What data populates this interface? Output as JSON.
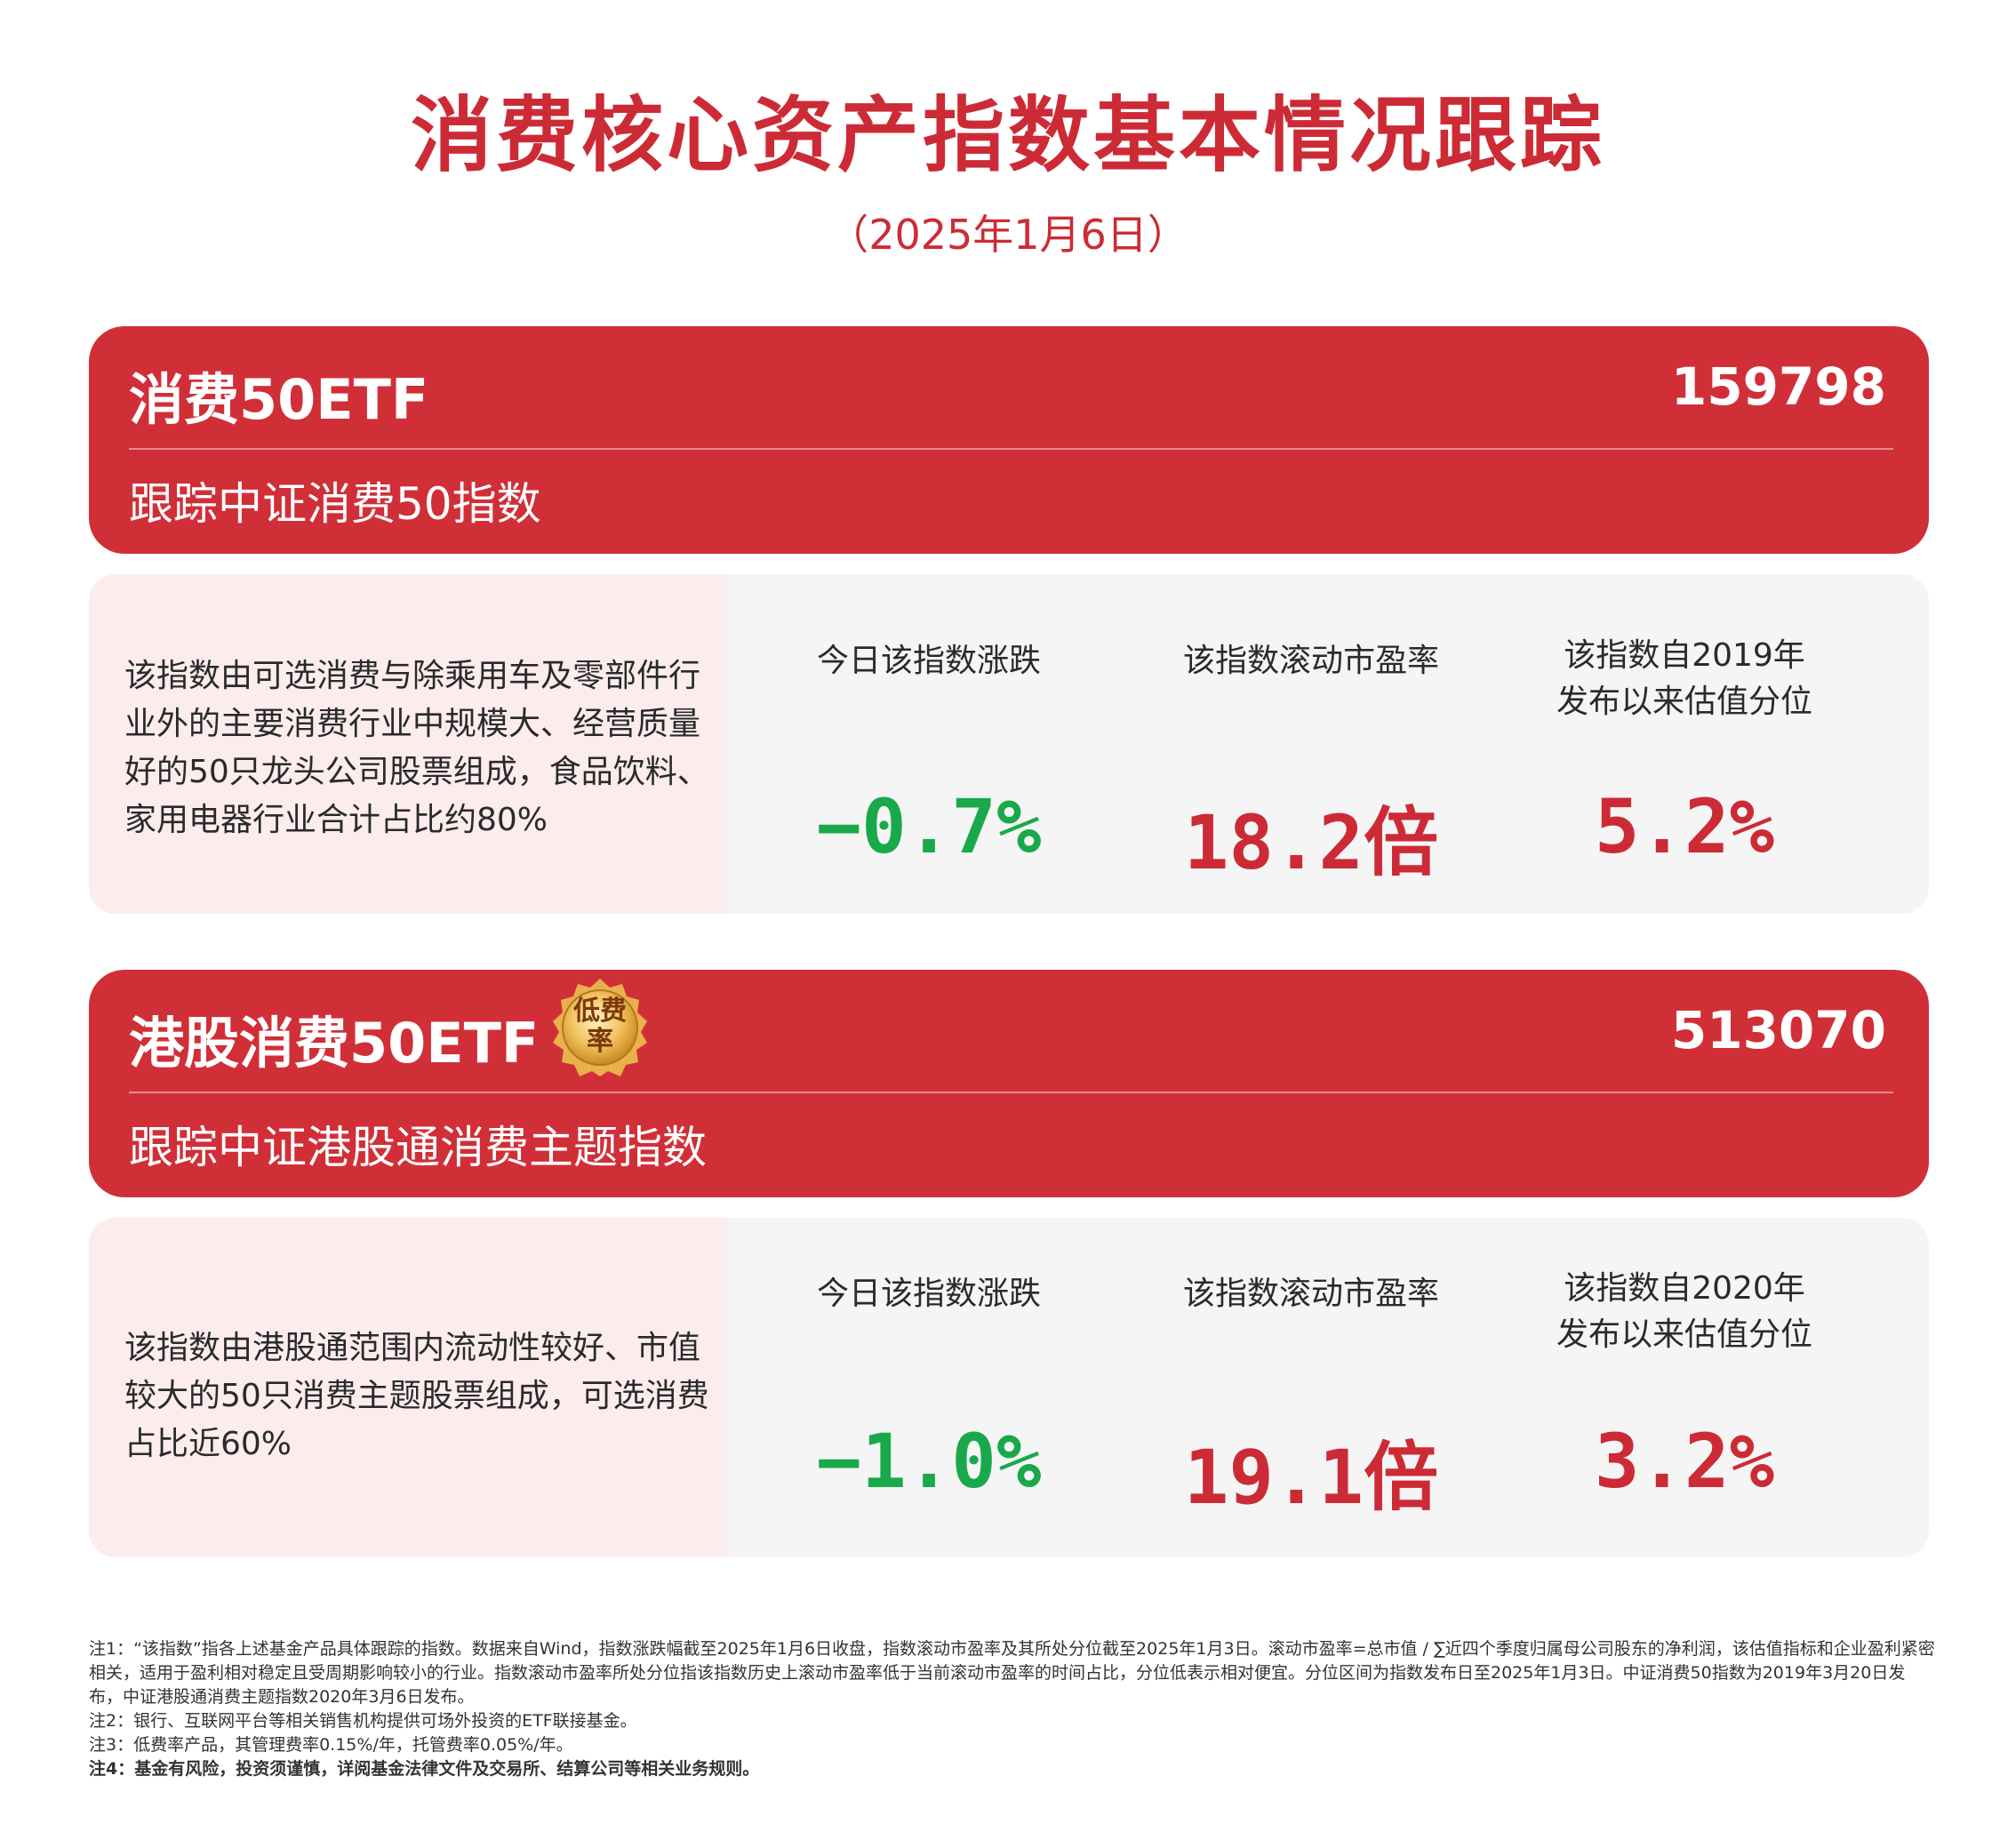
{
  "title": "消费核心资产指数基本情况跟踪",
  "date": "（2025年1月6日）",
  "funds": [
    {
      "name": "消费50ETF",
      "code": "159798",
      "track": "跟踪中证消费50指数",
      "description": "该指数由可选消费与除乘用车及零部件行业外的主要消费行业中规模大、经营质量好的50只龙头公司股票组成，食品饮料、家用电器行业合计占比约80%",
      "metrics": [
        {
          "label": "今日该指数涨跌",
          "value": "−0.7%"
        },
        {
          "label": "该指数滚动市盈率",
          "value": "18.2倍"
        },
        {
          "label": "该指数自2019年发布以来估值分位",
          "value": "5.2%"
        }
      ]
    },
    {
      "name": "港股消费50ETF",
      "badge": "低费率",
      "code": "513070",
      "track": "跟踪中证港股通消费主题指数",
      "description": "该指数由港股通范围内流动性较好、市值较大的50只消费主题股票组成，可选消费占比近60%",
      "metrics": [
        {
          "label": "今日该指数涨跌",
          "value": "−1.0%"
        },
        {
          "label": "该指数滚动市盈率",
          "value": "19.1倍"
        },
        {
          "label": "该指数自2020年发布以来估值分位",
          "value": "3.2%"
        }
      ]
    }
  ],
  "notes": [
    "注1：“该指数”指各上述基金产品具体跟踪的指数。数据来自Wind，指数涨跌幅截至2025年1月6日收盘，指数滚动市盈率及其所处分位截至2025年1月3日。滚动市盈率=总市值 / ∑近四个季度归属母公司股东的净利润，该估值指标和企业盈利紧密相关，适用于盈利相对稳定且受周期影响较小的行业。指数滚动市盈率所处分位指该指数历史上滚动市盈率低于当前滚动市盈率的时间占比，分位低表示相对便宜。分位区间为指数发布日至2025年1月3日。中证消费50指数为2019年3月20日发布，中证港股通消费主题指数2020年3月6日发布。",
    "注2：银行、互联网平台等相关销售机构提供可场外投资的ETF联接基金。",
    "注3：低费率产品，其管理费率0.15%/年，托管费率0.05%/年。",
    "注4：基金有风险，投资须谨慎，详阅基金法律文件及交易所、结算公司等相关业务规则。"
  ],
  "colors": {
    "brand_red": "#d12f38",
    "up_red": "#cc2b36",
    "down_green": "#19a94a"
  }
}
